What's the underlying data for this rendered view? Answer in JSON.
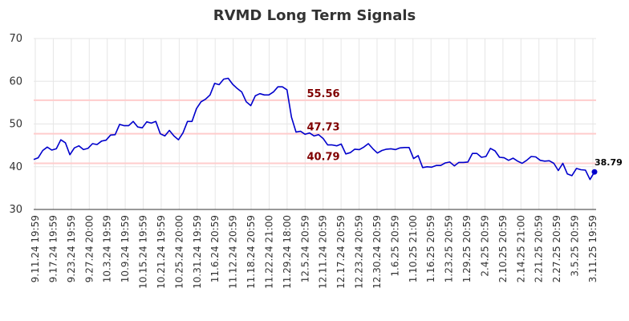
{
  "chart_data": {
    "type": "line",
    "title": "RVMD Long Term Signals",
    "xlabel": "",
    "ylabel": "",
    "ylim": [
      30,
      70
    ],
    "y_ticks": [
      "30",
      "40",
      "50",
      "60",
      "70"
    ],
    "grid": true,
    "x_tick_labels": [
      "9.11.24 19:59",
      "9.17.24 19:59",
      "9.23.24 19:59",
      "9.27.24 20:00",
      "10.3.24 19:59",
      "10.9.24 19:59",
      "10.15.24 19:59",
      "10.21.24 19:59",
      "10.25.24 20:00",
      "10.31.24 19:59",
      "11.6.24 20:59",
      "11.12.24 20:59",
      "11.18.24 20:59",
      "11.22.24 21:00",
      "11.29.24 18:00",
      "12.5.24 20:59",
      "12.11.24 20:59",
      "12.17.24 20:59",
      "12.23.24 20:59",
      "12.30.24 20:59",
      "1.6.25 20:59",
      "1.10.25 21:00",
      "1.16.25 20:59",
      "1.23.25 20:59",
      "1.29.25 20:59",
      "2.4.25 20:59",
      "2.10.25 20:59",
      "2.14.25 21:00",
      "2.21.25 20:59",
      "2.27.25 20:59",
      "3.5.25 20:59",
      "3.11.25 19:59"
    ],
    "series": [
      {
        "color": "#0000cc",
        "values": [
          41.7,
          42.1,
          43.8,
          44.6,
          43.9,
          44.2,
          46.3,
          45.6,
          42.8,
          44.4,
          44.9,
          44.0,
          44.3,
          45.4,
          45.2,
          46.0,
          46.2,
          47.4,
          47.5,
          49.9,
          49.6,
          49.6,
          50.6,
          49.3,
          49.1,
          50.5,
          50.2,
          50.6,
          47.7,
          47.2,
          48.5,
          47.2,
          46.3,
          47.9,
          50.6,
          50.6,
          53.6,
          55.2,
          55.8,
          56.8,
          59.5,
          59.2,
          60.5,
          60.7,
          59.3,
          58.3,
          57.5,
          55.2,
          54.3,
          56.6,
          57.1,
          56.8,
          56.8,
          57.5,
          58.7,
          58.7,
          58.0,
          51.6,
          48.1,
          48.3,
          47.6,
          47.9,
          47.2,
          47.5,
          46.6,
          45.1,
          45.1,
          44.9,
          45.3,
          43.0,
          43.3,
          44.1,
          44.0,
          44.6,
          45.4,
          44.2,
          43.2,
          43.8,
          44.1,
          44.2,
          44.0,
          44.4,
          44.5,
          44.5,
          41.9,
          42.6,
          39.8,
          40.0,
          39.9,
          40.3,
          40.3,
          40.9,
          41.1,
          40.2,
          41.0,
          41.0,
          41.1,
          43.1,
          43.1,
          42.2,
          42.4,
          44.3,
          43.7,
          42.2,
          42.1,
          41.5,
          42.0,
          41.3,
          40.8,
          41.5,
          42.4,
          42.3,
          41.5,
          41.3,
          41.4,
          40.8,
          39.1,
          40.8,
          38.3,
          37.9,
          39.6,
          39.3,
          39.2,
          37.0,
          38.79
        ]
      }
    ],
    "horizontal_lines": [
      {
        "value": 55.56,
        "label": "55.56",
        "line_color": "#ffcccc",
        "label_color": "#800000"
      },
      {
        "value": 47.73,
        "label": "47.73",
        "line_color": "#ffcccc",
        "label_color": "#800000"
      },
      {
        "value": 40.79,
        "label": "40.79",
        "line_color": "#ffcccc",
        "label_color": "#800000"
      }
    ],
    "last_value_label": "38.79"
  }
}
